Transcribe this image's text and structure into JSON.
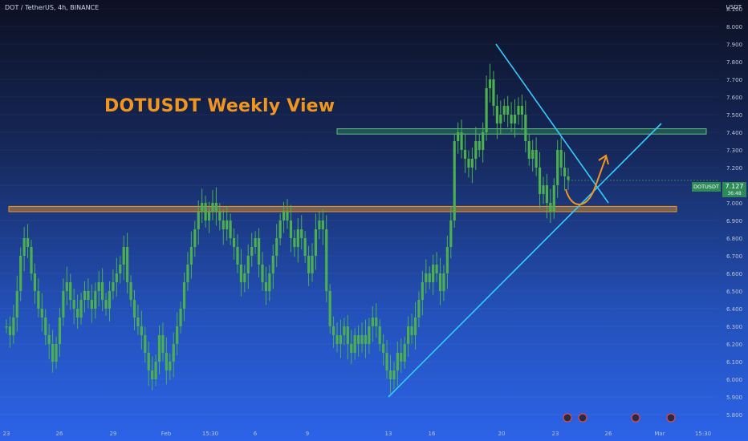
{
  "header": {
    "symbol_line": "DOT / TetherUS, 4h, BINANCE",
    "currency": "USDT"
  },
  "overlay": {
    "title": "DOTUSDT Weekly View"
  },
  "price_tag": {
    "symbol": "DOTUSDT",
    "price": "7.127",
    "timer": "36:48"
  },
  "colors": {
    "candle": "#4caf50",
    "accent_orange": "#f0961e",
    "resistance_green": "#2e8b57",
    "trendline_cyan": "#33ccff",
    "background_top": "#0c1022",
    "background_bottom": "#2c63e8"
  },
  "chart_data": {
    "type": "candlestick",
    "title": "DOTUSDT Weekly View",
    "ylim": [
      5.75,
      8.15
    ],
    "y_ticks": [
      "5.800",
      "5.900",
      "6.000",
      "6.100",
      "6.200",
      "6.300",
      "6.400",
      "6.500",
      "6.600",
      "6.700",
      "6.800",
      "6.900",
      "7.000",
      "7.100",
      "7.200",
      "7.300",
      "7.400",
      "7.500",
      "7.600",
      "7.700",
      "7.800",
      "7.900",
      "8.000",
      "8.100"
    ],
    "x_ticks": [
      "23",
      "26",
      "29",
      "Feb",
      "15:30",
      "6",
      "9",
      "13",
      "16",
      "20",
      "23",
      "26",
      "Mar",
      "15:30"
    ],
    "current_price": 7.127,
    "close_series": [
      6.3,
      6.25,
      6.35,
      6.5,
      6.7,
      6.8,
      6.75,
      6.6,
      6.5,
      6.4,
      6.35,
      6.25,
      6.2,
      6.1,
      6.2,
      6.35,
      6.5,
      6.55,
      6.45,
      6.4,
      6.35,
      6.45,
      6.5,
      6.45,
      6.4,
      6.5,
      6.55,
      6.45,
      6.4,
      6.5,
      6.55,
      6.6,
      6.65,
      6.75,
      6.55,
      6.45,
      6.35,
      6.3,
      6.25,
      6.15,
      6.05,
      6.0,
      6.1,
      6.25,
      6.15,
      6.05,
      6.1,
      6.2,
      6.3,
      6.4,
      6.55,
      6.65,
      6.75,
      6.85,
      6.95,
      7.0,
      6.9,
      6.95,
      7.0,
      6.95,
      6.9,
      6.85,
      6.9,
      6.8,
      6.75,
      6.65,
      6.55,
      6.6,
      6.7,
      6.75,
      6.8,
      6.65,
      6.55,
      6.5,
      6.6,
      6.7,
      6.8,
      6.9,
      6.95,
      6.9,
      6.8,
      6.75,
      6.85,
      6.8,
      6.7,
      6.6,
      6.7,
      6.85,
      6.9,
      6.85,
      6.5,
      6.3,
      6.25,
      6.2,
      6.25,
      6.3,
      6.2,
      6.15,
      6.25,
      6.2,
      6.25,
      6.2,
      6.3,
      6.35,
      6.3,
      6.2,
      6.15,
      6.05,
      6.0,
      6.05,
      6.15,
      6.1,
      6.2,
      6.3,
      6.25,
      6.35,
      6.45,
      6.55,
      6.6,
      6.55,
      6.65,
      6.6,
      6.5,
      6.6,
      6.75,
      6.9,
      7.35,
      7.4,
      7.3,
      7.25,
      7.2,
      7.25,
      7.35,
      7.3,
      7.4,
      7.65,
      7.7,
      7.55,
      7.45,
      7.5,
      7.55,
      7.5,
      7.45,
      7.5,
      7.55,
      7.5,
      7.35,
      7.25,
      7.3,
      7.2,
      7.05,
      7.1,
      7.0,
      6.95,
      7.1,
      7.3,
      7.2,
      7.15,
      7.13
    ],
    "annotations": {
      "resistance_zone": [
        7.39,
        7.42
      ],
      "support_zone": [
        6.95,
        6.98
      ],
      "descending_trendline": {
        "from": {
          "date": "19",
          "price": 7.9
        },
        "to": {
          "date": "25",
          "price": 7.0
        }
      },
      "ascending_trendline": {
        "from": {
          "date": "13",
          "price": 5.9
        },
        "to": {
          "date": "Mar",
          "price": 7.45
        }
      }
    }
  }
}
